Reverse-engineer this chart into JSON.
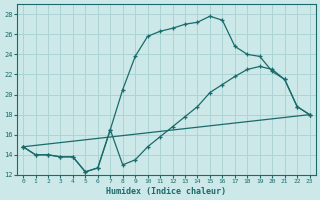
{
  "xlabel": "Humidex (Indice chaleur)",
  "xlim": [
    -0.5,
    23.5
  ],
  "ylim": [
    12,
    29
  ],
  "yticks": [
    12,
    14,
    16,
    18,
    20,
    22,
    24,
    26,
    28
  ],
  "xticks": [
    0,
    1,
    2,
    3,
    4,
    5,
    6,
    7,
    8,
    9,
    10,
    11,
    12,
    13,
    14,
    15,
    16,
    17,
    18,
    19,
    20,
    21,
    22,
    23
  ],
  "bg_color": "#cce8e8",
  "line_color": "#1a6b6b",
  "grid_color": "#add4d4",
  "line1_x": [
    0,
    1,
    2,
    3,
    4,
    5,
    6,
    7,
    8,
    9,
    10,
    11,
    12,
    13,
    14,
    15,
    16,
    17,
    18,
    19,
    20,
    21,
    22,
    23
  ],
  "line1_y": [
    14.8,
    14.0,
    14.0,
    13.8,
    13.8,
    12.3,
    12.7,
    16.5,
    20.5,
    23.8,
    25.8,
    26.3,
    26.6,
    27.0,
    27.2,
    27.8,
    27.4,
    24.8,
    24.0,
    23.8,
    22.3,
    21.5,
    18.8,
    18.0
  ],
  "line2_x": [
    0,
    1,
    2,
    3,
    4,
    5,
    6,
    7,
    8,
    9,
    10,
    11,
    12,
    13,
    14,
    15,
    16,
    17,
    18,
    19,
    20,
    21,
    22,
    23
  ],
  "line2_y": [
    14.8,
    14.0,
    14.0,
    13.8,
    13.8,
    12.3,
    12.7,
    16.5,
    13.0,
    13.5,
    14.8,
    15.8,
    16.8,
    17.8,
    18.8,
    20.2,
    21.0,
    21.8,
    22.5,
    22.8,
    22.5,
    21.5,
    18.8,
    18.0
  ],
  "line3_x": [
    0,
    23
  ],
  "line3_y": [
    14.8,
    18.0
  ]
}
